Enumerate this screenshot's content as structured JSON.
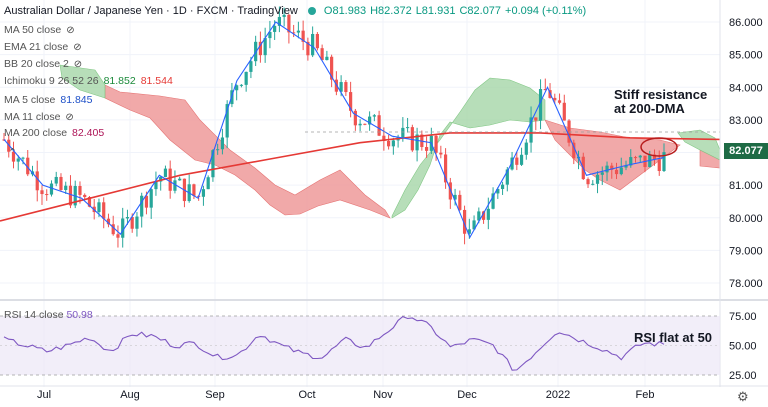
{
  "header": {
    "title": "Australian Dollar / Japanese Yen · 1D · FXCM · TradingView",
    "open": "O81.983",
    "high": "H82.372",
    "low": "L81.931",
    "close": "C82.077",
    "change": "+0.094 (+0.11%)"
  },
  "indicators": [
    {
      "label": "MA 50 close",
      "icon": "eye-off-icon"
    },
    {
      "label": "EMA 21 close",
      "icon": "eye-off-icon"
    },
    {
      "label": "BB 20 close 2",
      "icon": "eye-off-icon"
    },
    {
      "label": "Ichimoku 9 26 52 26",
      "v1": "81.852",
      "v2": "81.544"
    },
    {
      "label": "MA 5 close",
      "v1": "81.845"
    },
    {
      "label": "MA 11 close",
      "icon": "eye-off-icon"
    },
    {
      "label": "MA 200 close",
      "v1": "82.405"
    }
  ],
  "annotations": {
    "resistance": "Stiff resistance\nat 200-DMA",
    "rsi": "RSI flat at 50"
  },
  "last_price": "82.077",
  "rsi_label": "RSI 14 close",
  "rsi_value": "50.98",
  "colors": {
    "up": "#26a69a",
    "down": "#ef5350",
    "ma5": "#2962ff",
    "ma200": "#e53935",
    "cloud_bull": "#a5d6a7",
    "cloud_bear": "#ef9a9a",
    "rsi": "#7e57c2"
  },
  "chart_data": {
    "type": "line",
    "main_price_axis": {
      "ticks": [
        "86.000",
        "85.000",
        "84.000",
        "83.000",
        "82.000",
        "81.000",
        "80.000",
        "79.000",
        "78.000"
      ]
    },
    "rsi_axis": {
      "ticks": [
        "75.00",
        "50.00",
        "25.00"
      ]
    },
    "x_ticks": [
      "Jul",
      "Aug",
      "Sep",
      "Oct",
      "Nov",
      "Dec",
      "2022",
      "Feb"
    ],
    "series": [
      {
        "name": "MA 200 close",
        "values": [
          79.9,
          80.6,
          81.3,
          81.8,
          82.3,
          82.6,
          82.6,
          82.45,
          82.4
        ]
      },
      {
        "name": "MA 5 close",
        "values": [
          82.4,
          81.0,
          80.6,
          79.5,
          81.3,
          80.6,
          84.2,
          86.0,
          85.2,
          83.2,
          82.5,
          82.3,
          79.4,
          81.5,
          84.0,
          81.3,
          81.6,
          81.85
        ]
      },
      {
        "name": "RSI 14 close",
        "values": [
          55,
          50,
          45,
          50,
          57,
          45,
          60,
          58,
          50,
          52,
          40,
          42,
          60,
          50,
          43,
          40,
          55,
          48,
          62,
          76,
          66,
          48,
          55,
          50,
          28,
          45,
          63,
          55,
          48,
          40,
          52,
          50.98
        ]
      }
    ]
  }
}
